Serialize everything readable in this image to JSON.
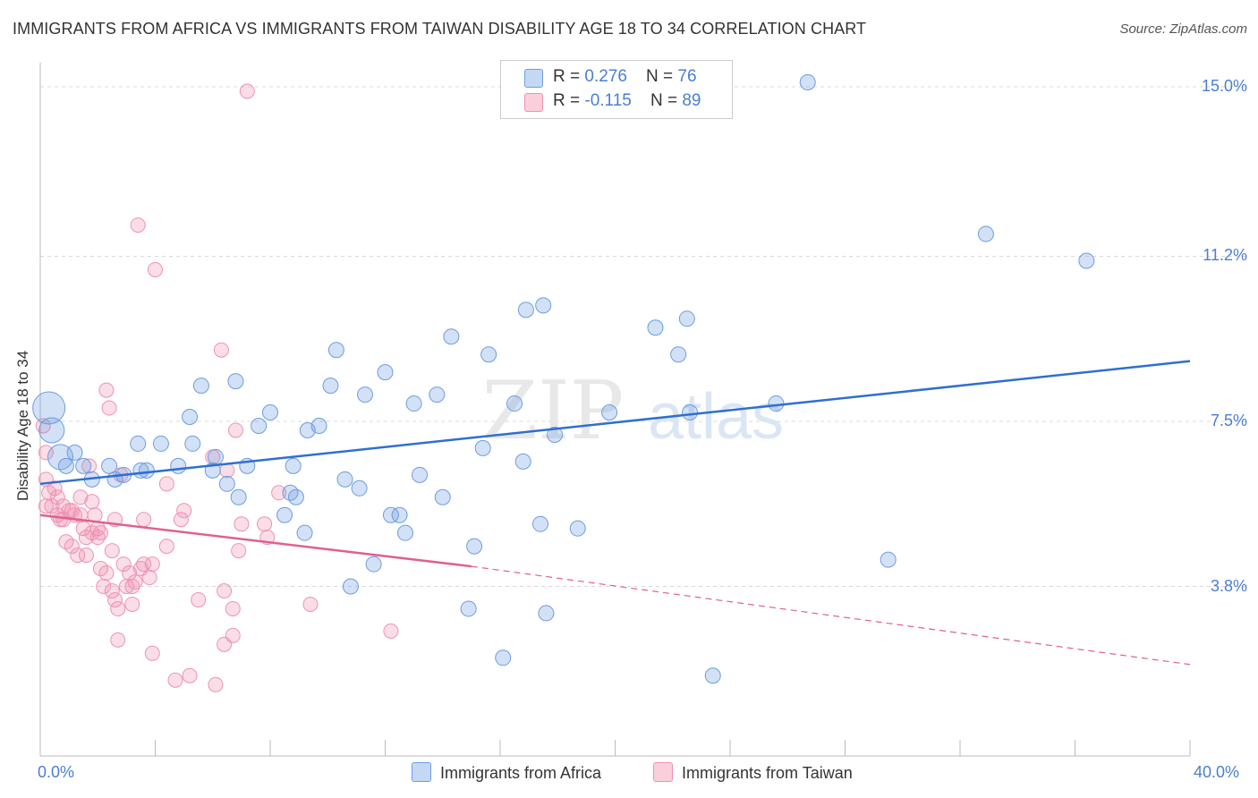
{
  "title": "IMMIGRANTS FROM AFRICA VS IMMIGRANTS FROM TAIWAN DISABILITY AGE 18 TO 34 CORRELATION CHART",
  "source": "Source: ZipAtlas.com",
  "legend": {
    "rows": [
      {
        "r_label": "R = ",
        "r_value": "0.276",
        "n_label": "N = ",
        "n_value": "76"
      },
      {
        "r_label": "R = ",
        "r_value": "-0.115",
        "n_label": "N = ",
        "n_value": "89"
      }
    ]
  },
  "watermark": {
    "zip": "ZIP",
    "atlas": "atlas"
  },
  "chart_data": {
    "type": "scatter",
    "title": "IMMIGRANTS FROM AFRICA VS IMMIGRANTS FROM TAIWAN DISABILITY AGE 18 TO 34 CORRELATION CHART",
    "xlabel": "",
    "ylabel": "Disability Age 18 to 34",
    "xlim": [
      0,
      40
    ],
    "ylim": [
      0,
      15.5
    ],
    "x_tick_labels": [
      "0.0%",
      "40.0%"
    ],
    "y_ticks": [
      3.8,
      7.5,
      11.2,
      15.0
    ],
    "y_tick_labels": [
      "3.8%",
      "7.5%",
      "11.2%",
      "15.0%"
    ],
    "grid": "horizontal dashed",
    "legend_position": "top-center",
    "colors": {
      "africa": "#6c9de0",
      "taiwan": "#ef92b0",
      "africa_line": "#2f6fd0",
      "taiwan_line": "#e06090"
    },
    "series": [
      {
        "name": "Immigrants from Africa",
        "trend": {
          "x": [
            0,
            40
          ],
          "y": [
            6.1,
            8.85
          ]
        },
        "points": [
          [
            0.3,
            7.8
          ],
          [
            0.4,
            7.3
          ],
          [
            0.7,
            6.7
          ],
          [
            0.9,
            6.5
          ],
          [
            1.2,
            6.8
          ],
          [
            1.5,
            6.5
          ],
          [
            1.8,
            6.2
          ],
          [
            2.4,
            6.5
          ],
          [
            2.6,
            6.2
          ],
          [
            2.9,
            6.3
          ],
          [
            3.5,
            6.4
          ],
          [
            3.4,
            7.0
          ],
          [
            3.7,
            6.4
          ],
          [
            4.2,
            7.0
          ],
          [
            4.8,
            6.5
          ],
          [
            5.2,
            7.6
          ],
          [
            5.3,
            7.0
          ],
          [
            5.6,
            8.3
          ],
          [
            6.0,
            6.4
          ],
          [
            6.1,
            6.7
          ],
          [
            6.5,
            6.1
          ],
          [
            6.8,
            8.4
          ],
          [
            6.9,
            5.8
          ],
          [
            7.2,
            6.5
          ],
          [
            7.6,
            7.4
          ],
          [
            8.0,
            7.7
          ],
          [
            8.5,
            5.4
          ],
          [
            8.7,
            5.9
          ],
          [
            8.8,
            6.5
          ],
          [
            8.9,
            5.8
          ],
          [
            9.2,
            5.0
          ],
          [
            9.3,
            7.3
          ],
          [
            9.7,
            7.4
          ],
          [
            10.1,
            8.3
          ],
          [
            10.3,
            9.1
          ],
          [
            10.6,
            6.2
          ],
          [
            10.8,
            3.8
          ],
          [
            11.1,
            6.0
          ],
          [
            11.3,
            8.1
          ],
          [
            11.6,
            4.3
          ],
          [
            12.0,
            8.6
          ],
          [
            12.2,
            5.4
          ],
          [
            12.5,
            5.4
          ],
          [
            12.7,
            5.0
          ],
          [
            13.0,
            7.9
          ],
          [
            13.2,
            6.3
          ],
          [
            13.8,
            8.1
          ],
          [
            14.0,
            5.8
          ],
          [
            14.3,
            9.4
          ],
          [
            14.9,
            3.3
          ],
          [
            15.1,
            4.7
          ],
          [
            15.4,
            6.9
          ],
          [
            15.6,
            9.0
          ],
          [
            16.1,
            2.2
          ],
          [
            16.8,
            6.6
          ],
          [
            16.5,
            7.9
          ],
          [
            16.9,
            10.0
          ],
          [
            17.5,
            10.1
          ],
          [
            17.4,
            5.2
          ],
          [
            17.6,
            3.2
          ],
          [
            17.9,
            7.2
          ],
          [
            18.7,
            5.1
          ],
          [
            19.8,
            7.7
          ],
          [
            21.4,
            9.6
          ],
          [
            22.2,
            9.0
          ],
          [
            22.5,
            9.8
          ],
          [
            22.6,
            7.7
          ],
          [
            23.4,
            1.8
          ],
          [
            25.6,
            7.9
          ],
          [
            29.5,
            4.4
          ],
          [
            32.9,
            11.7
          ],
          [
            36.4,
            11.1
          ],
          [
            26.7,
            15.1
          ]
        ]
      },
      {
        "name": "Immigrants from Taiwan",
        "trend": {
          "x": [
            0,
            15
          ],
          "y": [
            5.4,
            4.25
          ]
        },
        "trend_extension": {
          "x": [
            15,
            40
          ],
          "y": [
            4.25,
            2.05
          ]
        },
        "points": [
          [
            0.1,
            7.4
          ],
          [
            0.2,
            6.8
          ],
          [
            0.2,
            6.2
          ],
          [
            0.2,
            5.6
          ],
          [
            0.3,
            5.9
          ],
          [
            0.4,
            5.6
          ],
          [
            0.5,
            6.0
          ],
          [
            0.6,
            5.4
          ],
          [
            0.6,
            5.8
          ],
          [
            0.7,
            5.3
          ],
          [
            0.8,
            5.3
          ],
          [
            0.8,
            5.6
          ],
          [
            0.9,
            4.8
          ],
          [
            1.0,
            5.5
          ],
          [
            1.1,
            5.5
          ],
          [
            1.1,
            4.7
          ],
          [
            1.2,
            5.4
          ],
          [
            1.3,
            4.5
          ],
          [
            1.4,
            5.8
          ],
          [
            1.4,
            5.4
          ],
          [
            1.5,
            5.1
          ],
          [
            1.6,
            4.5
          ],
          [
            1.6,
            4.9
          ],
          [
            1.7,
            6.5
          ],
          [
            1.8,
            5.0
          ],
          [
            1.8,
            5.7
          ],
          [
            1.9,
            5.4
          ],
          [
            2.0,
            5.1
          ],
          [
            2.0,
            4.9
          ],
          [
            2.1,
            5.0
          ],
          [
            2.1,
            4.2
          ],
          [
            2.2,
            3.8
          ],
          [
            2.3,
            4.1
          ],
          [
            2.3,
            8.2
          ],
          [
            2.4,
            7.8
          ],
          [
            2.5,
            4.6
          ],
          [
            2.5,
            3.7
          ],
          [
            2.6,
            5.3
          ],
          [
            2.6,
            3.5
          ],
          [
            2.7,
            3.3
          ],
          [
            2.7,
            2.6
          ],
          [
            2.8,
            6.3
          ],
          [
            2.9,
            4.3
          ],
          [
            3.0,
            3.8
          ],
          [
            3.1,
            4.1
          ],
          [
            3.2,
            3.4
          ],
          [
            3.2,
            3.8
          ],
          [
            3.3,
            3.9
          ],
          [
            3.4,
            11.9
          ],
          [
            3.5,
            4.2
          ],
          [
            3.6,
            5.3
          ],
          [
            3.6,
            4.3
          ],
          [
            3.8,
            4.0
          ],
          [
            3.9,
            4.3
          ],
          [
            3.9,
            2.3
          ],
          [
            4.0,
            10.9
          ],
          [
            4.4,
            6.1
          ],
          [
            4.4,
            4.7
          ],
          [
            4.7,
            1.7
          ],
          [
            4.9,
            5.3
          ],
          [
            5.0,
            5.5
          ],
          [
            5.2,
            1.8
          ],
          [
            5.5,
            3.5
          ],
          [
            6.0,
            6.7
          ],
          [
            6.1,
            1.6
          ],
          [
            6.3,
            9.1
          ],
          [
            6.4,
            3.7
          ],
          [
            6.4,
            2.5
          ],
          [
            6.5,
            6.4
          ],
          [
            6.7,
            3.3
          ],
          [
            6.7,
            2.7
          ],
          [
            6.8,
            7.3
          ],
          [
            6.9,
            4.6
          ],
          [
            7.0,
            5.2
          ],
          [
            7.8,
            5.2
          ],
          [
            7.9,
            4.9
          ],
          [
            8.3,
            5.9
          ],
          [
            9.4,
            3.4
          ],
          [
            12.2,
            2.8
          ],
          [
            7.2,
            14.9
          ]
        ]
      }
    ]
  },
  "bottom_legend": {
    "africa": "Immigrants from Africa",
    "taiwan": "Immigrants from Taiwan"
  }
}
